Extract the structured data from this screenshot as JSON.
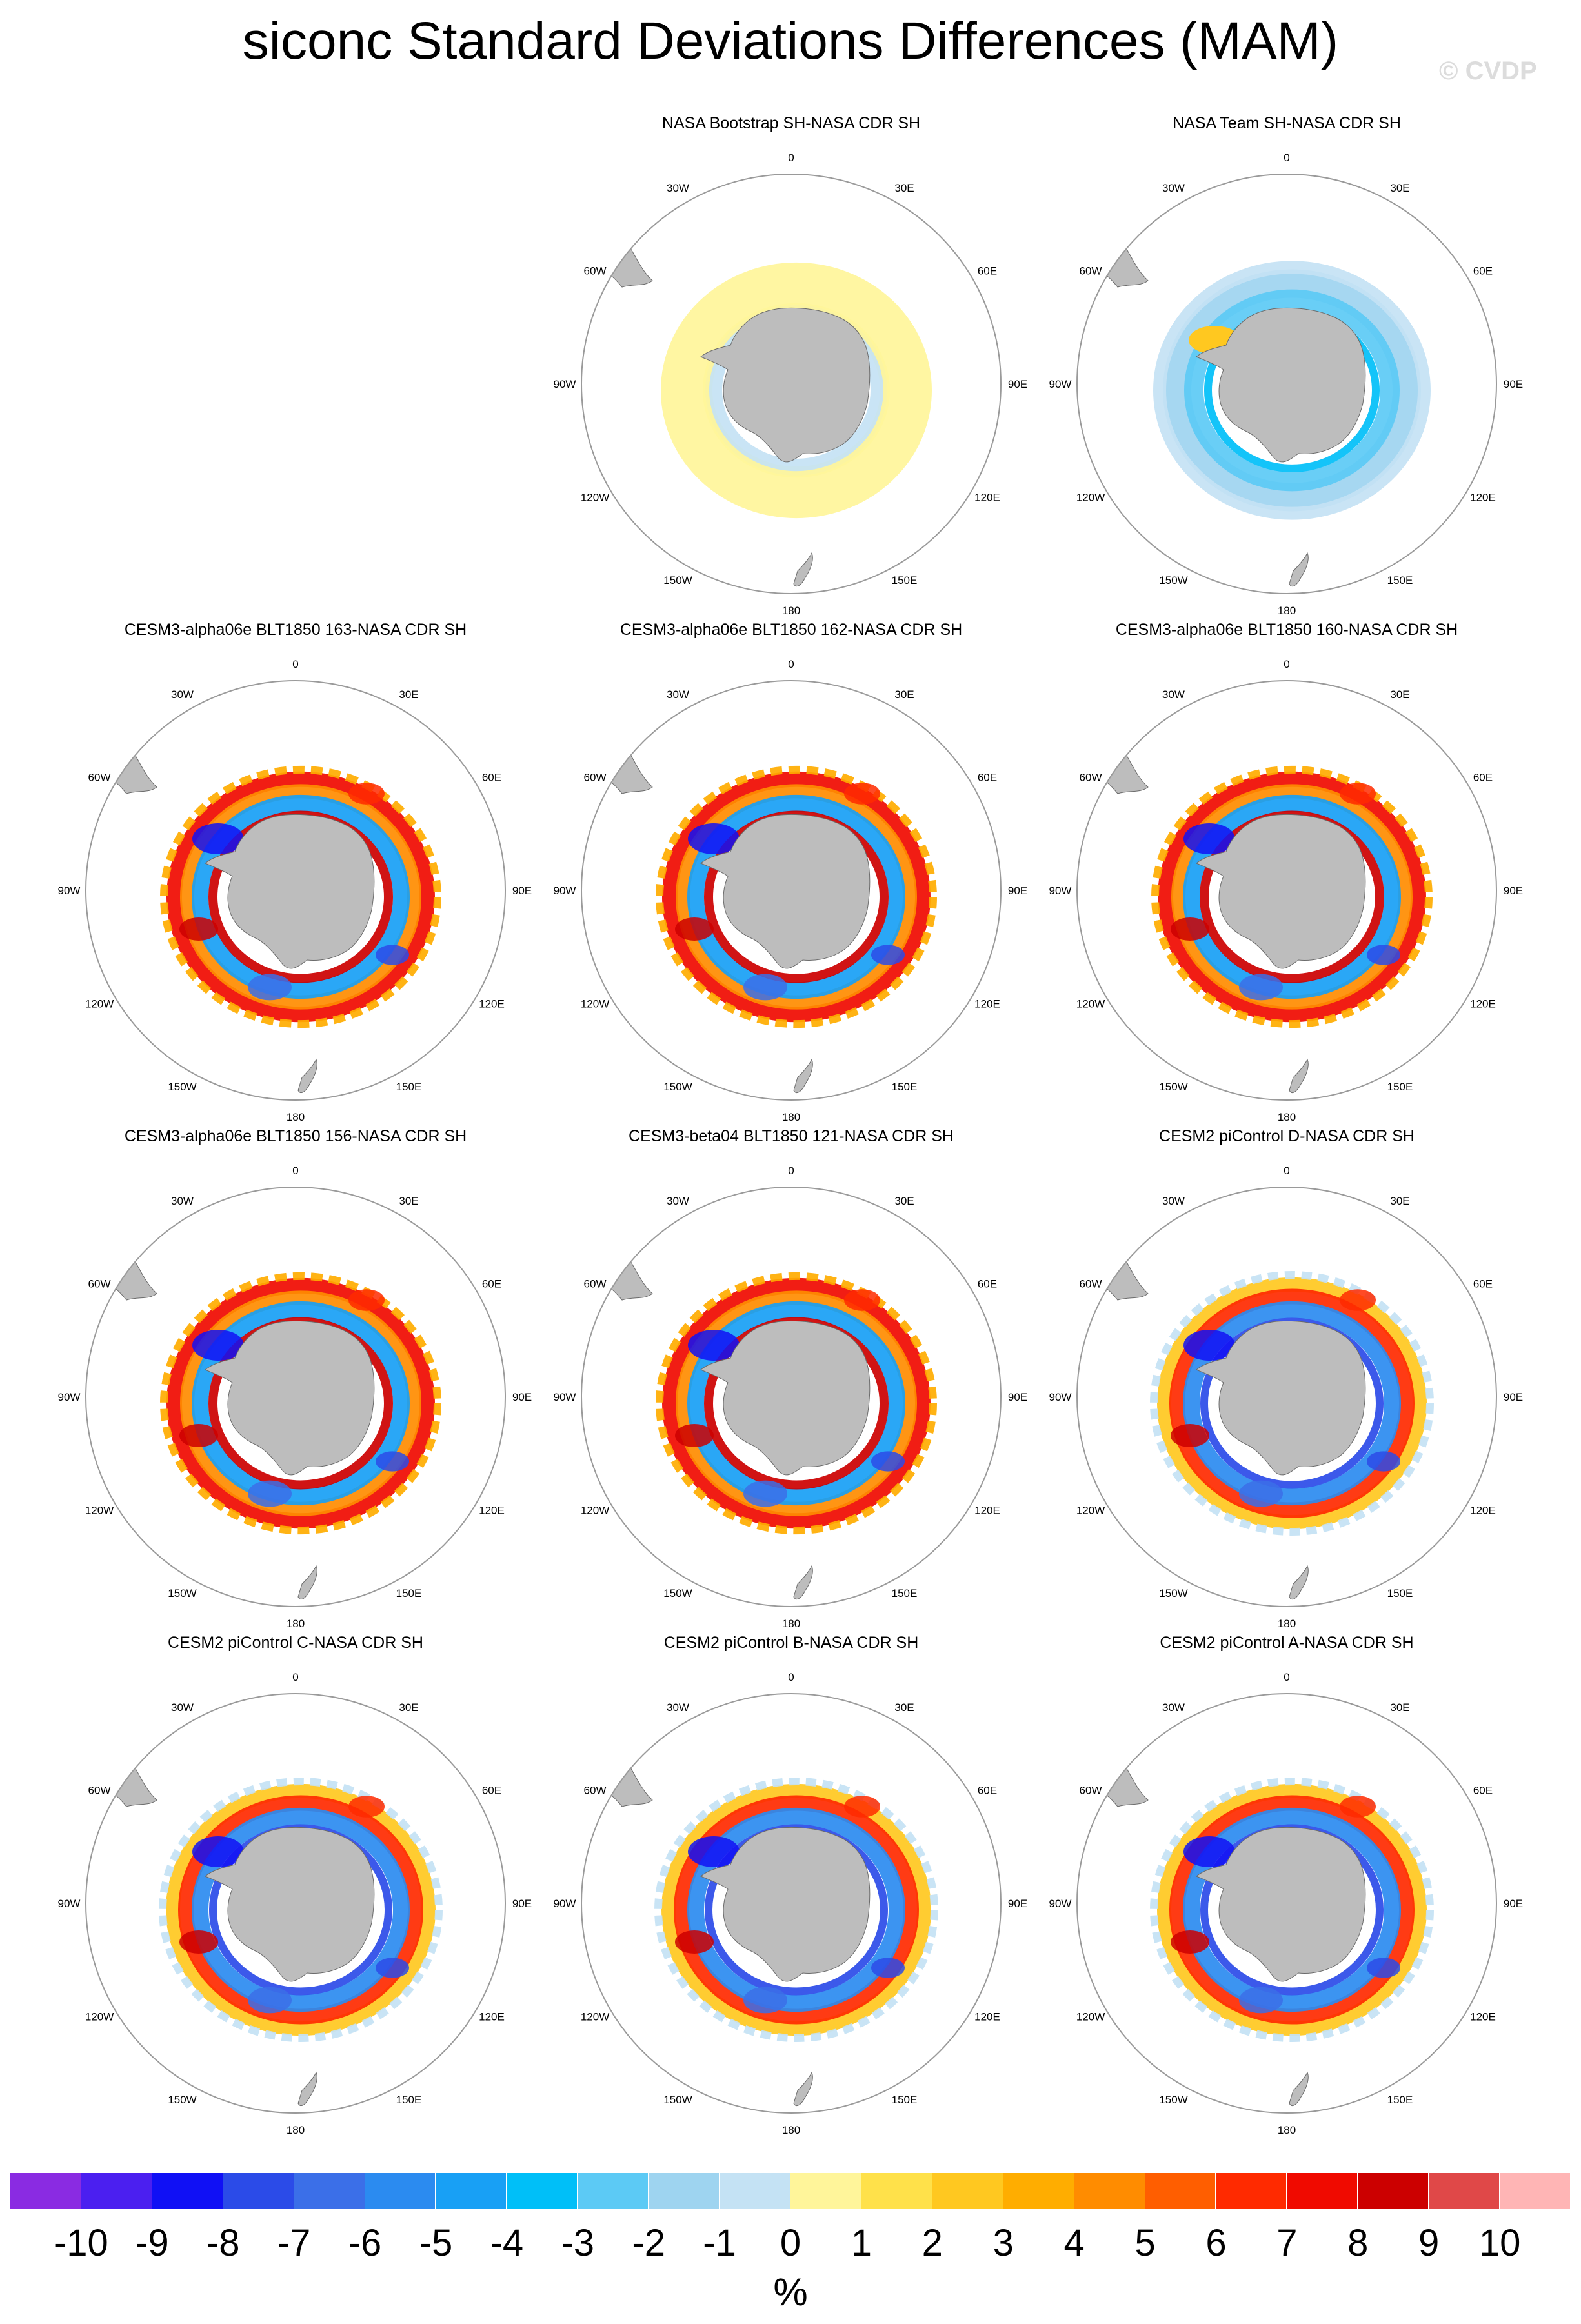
{
  "title": "siconc Standard Deviations Differences (MAM)",
  "watermark": "© CVDP",
  "colors": {
    "land": "#bdbdbd",
    "circle": "#9a9a9a",
    "palette": [
      "#8a2be2",
      "#4b1ff0",
      "#1010f5",
      "#2b4be8",
      "#3b6fe8",
      "#2b8bf0",
      "#18a0f5",
      "#00bff8",
      "#5ccaf5",
      "#9ed4f0",
      "#c4e2f4",
      "#fff59a",
      "#ffe14a",
      "#ffc820",
      "#ffad00",
      "#ff8c00",
      "#ff5e00",
      "#ff2a00",
      "#f00a00",
      "#cc0000",
      "#e04848",
      "#ffb5b5"
    ]
  },
  "longitude_labels": [
    "0",
    "30E",
    "60E",
    "90E",
    "120E",
    "150E",
    "180",
    "150W",
    "120W",
    "90W",
    "60W",
    "30W"
  ],
  "panels": [
    {
      "title": "NASA Bootstrap SH-NASA CDR SH",
      "style": "bootstrap"
    },
    {
      "title": "NASA Team SH-NASA CDR SH",
      "style": "team"
    },
    {
      "title": "CESM3-alpha06e BLT1850 163-NASA CDR SH",
      "style": "model"
    },
    {
      "title": "CESM3-alpha06e BLT1850 162-NASA CDR SH",
      "style": "model"
    },
    {
      "title": "CESM3-alpha06e BLT1850 160-NASA CDR SH",
      "style": "model"
    },
    {
      "title": "CESM3-alpha06e BLT1850 156-NASA CDR SH",
      "style": "model"
    },
    {
      "title": "CESM3-beta04 BLT1850 121-NASA CDR SH",
      "style": "model"
    },
    {
      "title": "CESM2 piControl D-NASA CDR SH",
      "style": "cesm2"
    },
    {
      "title": "CESM2 piControl C-NASA CDR SH",
      "style": "cesm2"
    },
    {
      "title": "CESM2 piControl B-NASA CDR SH",
      "style": "cesm2"
    },
    {
      "title": "CESM2 piControl A-NASA CDR SH",
      "style": "cesm2"
    }
  ],
  "colorbar": {
    "labels": [
      "-10",
      "-9",
      "-8",
      "-7",
      "-6",
      "-5",
      "-4",
      "-3",
      "-2",
      "-1",
      "0",
      "1",
      "2",
      "3",
      "4",
      "5",
      "6",
      "7",
      "8",
      "9",
      "10"
    ],
    "unit": "%"
  }
}
